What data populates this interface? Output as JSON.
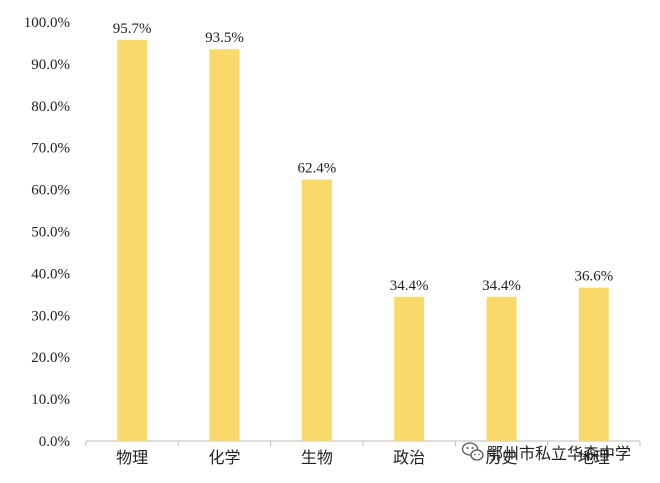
{
  "chart_data": {
    "type": "bar",
    "categories": [
      "物理",
      "化学",
      "生物",
      "政治",
      "历史",
      "地理"
    ],
    "values": [
      95.7,
      93.5,
      62.4,
      34.4,
      34.4,
      36.6
    ],
    "value_labels": [
      "95.7%",
      "93.5%",
      "62.4%",
      "34.4%",
      "34.4%",
      "36.6%"
    ],
    "ylim": [
      0,
      100
    ],
    "yticks": [
      0,
      10,
      20,
      30,
      40,
      50,
      60,
      70,
      80,
      90,
      100
    ],
    "ytick_labels": [
      "0.0%",
      "10.0%",
      "20.0%",
      "30.0%",
      "40.0%",
      "50.0%",
      "60.0%",
      "70.0%",
      "80.0%",
      "90.0%",
      "100.0%"
    ],
    "grid": false,
    "bar_color": "#FAD96B",
    "axis_color": "#BDBDBD"
  },
  "watermark": {
    "text": "鄂州市私立华森中学",
    "icon": "wechat-icon"
  }
}
